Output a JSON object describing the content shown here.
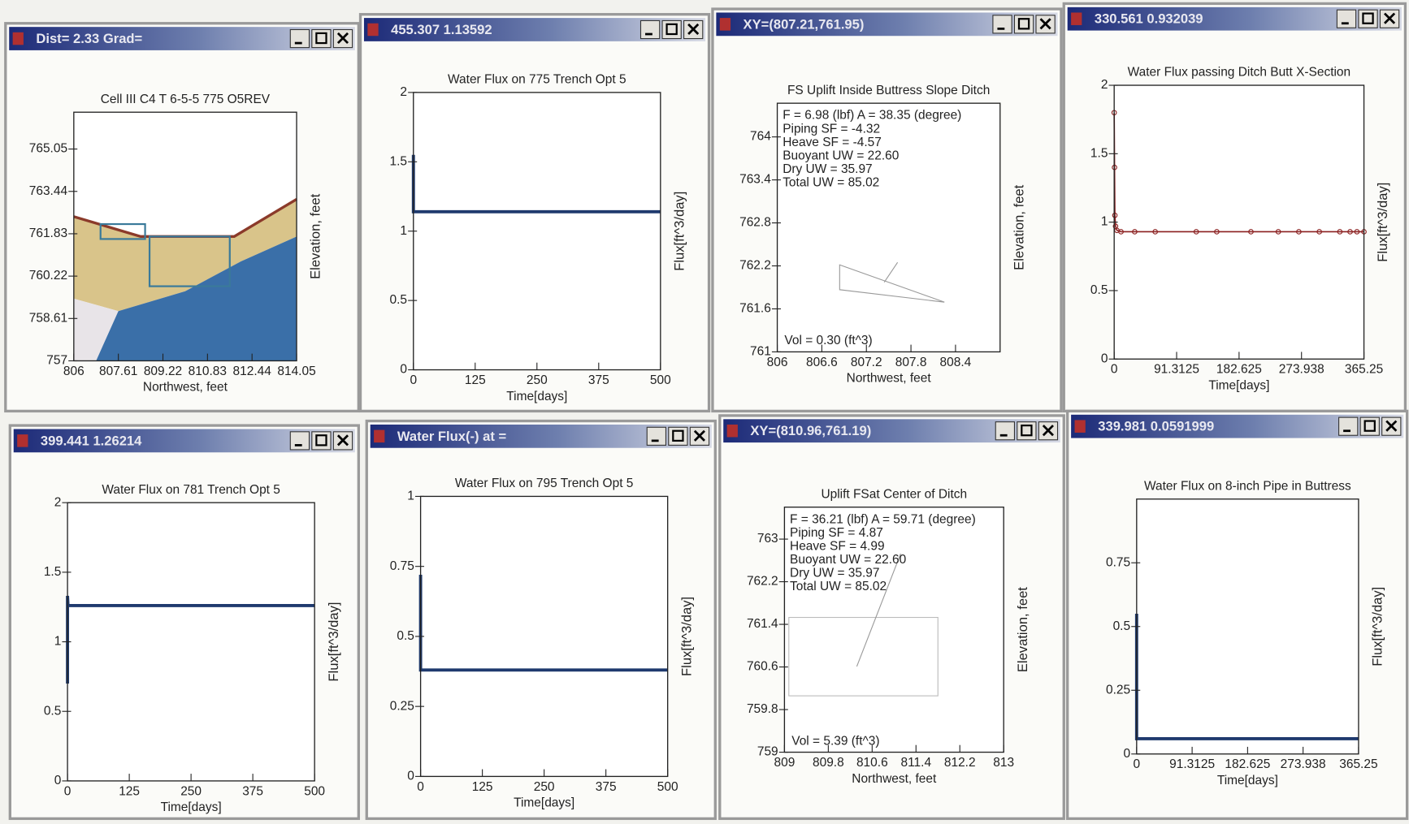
{
  "chart_data": [
    {
      "type": "section",
      "window_title": "Dist= 2.33 Grad=",
      "title": "Cell III C4 T 6-5-5 775 O5REV",
      "x_label": "Northwest, feet",
      "y_label": "Elevation, feet",
      "xlim": [
        806,
        814.05
      ],
      "xticks": [
        806,
        807.61,
        809.22,
        810.83,
        812.44,
        814.05
      ],
      "ylim": [
        757,
        766.45
      ],
      "yticks": [
        757,
        758.61,
        760.22,
        761.83,
        763.44,
        765.05
      ]
    },
    {
      "type": "line",
      "window_title": "455.307 1.13592",
      "title": "Water Flux on 775 Trench Opt 5",
      "x_label": "Time[days]",
      "y_label": "Flux[ft^3/day]",
      "xlim": [
        0,
        500
      ],
      "xticks": [
        0,
        125,
        250,
        375,
        500
      ],
      "ylim": [
        0,
        2
      ],
      "yticks": [
        0,
        0.5,
        1,
        1.5,
        2
      ],
      "x": [
        0,
        0,
        1,
        500
      ],
      "values": [
        1.55,
        1.14,
        1.14,
        1.14
      ],
      "color": "#1f3a6e"
    },
    {
      "type": "fs",
      "window_title": "XY=(807.21,761.95)",
      "title": "FS Uplift Inside Buttress Slope Ditch",
      "x_label": "Northwest, feet",
      "y_label": "Elevation, feet",
      "xlim": [
        806,
        809
      ],
      "xticks": [
        806,
        806.6,
        807.2,
        807.8,
        808.4
      ],
      "ylim": [
        761,
        764.47
      ],
      "yticks": [
        761,
        761.6,
        762.2,
        762.8,
        763.4,
        764
      ],
      "annotations": [
        "F = 6.98 (lbf) A = 38.35 (degree)",
        "Piping SF = -4.32",
        "Heave SF = -4.57",
        "Buoyant UW = 22.60",
        "Dry UW = 35.97",
        "Total UW = 85.02"
      ],
      "volume_note": "Vol = 0.30 (ft^3)"
    },
    {
      "type": "line",
      "window_title": "330.561 0.932039",
      "title": "Water Flux passing Ditch Butt X-Section",
      "x_label": "Time[days]",
      "y_label": "Flux[ft^3/day]",
      "xlim": [
        0,
        365.25
      ],
      "xticks": [
        0,
        91.3125,
        182.625,
        273.938,
        365.25
      ],
      "ylim": [
        0,
        2
      ],
      "yticks": [
        0,
        0.5,
        1,
        1.5,
        2
      ],
      "x": [
        0,
        0.5,
        1,
        2,
        4,
        10,
        30,
        60,
        120,
        150,
        200,
        240,
        270,
        300,
        330,
        345,
        355,
        365.25
      ],
      "values": [
        1.8,
        1.4,
        1.05,
        0.97,
        0.94,
        0.93,
        0.93,
        0.93,
        0.93,
        0.93,
        0.93,
        0.93,
        0.93,
        0.93,
        0.93,
        0.93,
        0.93,
        0.93
      ],
      "color": "#8b2020",
      "markers": true
    },
    {
      "type": "line",
      "window_title": "399.441 1.26214",
      "title": "Water Flux on 781 Trench Opt 5",
      "x_label": "Time[days]",
      "y_label": "Flux[ft^3/day]",
      "xlim": [
        0,
        500
      ],
      "xticks": [
        0,
        125,
        250,
        375,
        500
      ],
      "ylim": [
        0,
        2
      ],
      "yticks": [
        0,
        0.5,
        1,
        1.5,
        2
      ],
      "x": [
        0,
        0,
        1,
        500
      ],
      "values": [
        0.7,
        1.33,
        1.26,
        1.26
      ],
      "color": "#1f3a6e"
    },
    {
      "type": "line",
      "window_title": "Water Flux(-) at =",
      "title": "Water Flux on 795 Trench Opt 5",
      "x_label": "Time[days]",
      "y_label": "Flux[ft^3/day]",
      "xlim": [
        0,
        500
      ],
      "xticks": [
        0,
        125,
        250,
        375,
        500
      ],
      "ylim": [
        0,
        1
      ],
      "yticks": [
        0,
        0.25,
        0.5,
        0.75,
        1
      ],
      "x": [
        0,
        0,
        500
      ],
      "values": [
        0.72,
        0.38,
        0.38
      ],
      "color": "#1f3a6e"
    },
    {
      "type": "fs",
      "window_title": "XY=(810.96,761.19)",
      "title": "Uplift FSat Center of Ditch",
      "x_label": "Northwest, feet",
      "y_label": "Elevation, feet",
      "xlim": [
        809,
        813
      ],
      "xticks": [
        809,
        809.8,
        810.6,
        811.4,
        812.2,
        813
      ],
      "ylim": [
        759,
        763.6
      ],
      "yticks": [
        759,
        759.8,
        760.6,
        761.4,
        762.2,
        763
      ],
      "annotations": [
        "F = 36.21 (lbf) A = 59.71 (degree)",
        "Piping SF = 4.87",
        "Heave SF = 4.99",
        "Buoyant UW = 22.60",
        "Dry UW = 35.97",
        "Total UW = 85.02"
      ],
      "volume_note": "Vol = 5.39 (ft^3)"
    },
    {
      "type": "line",
      "window_title": "339.981 0.0591999",
      "title": "Water Flux on 8-inch Pipe in Buttress",
      "x_label": "Time[days]",
      "y_label": "Flux[ft^3/day]",
      "xlim": [
        0,
        365.25
      ],
      "xticks": [
        0,
        91.3125,
        182.625,
        273.938,
        365.25
      ],
      "ylim": [
        0,
        1
      ],
      "yticks": [
        0,
        0.25,
        0.5,
        0.75
      ],
      "x": [
        0,
        0,
        365.25
      ],
      "values": [
        0.55,
        0.06,
        0.06
      ],
      "color": "#1f3a6e"
    }
  ]
}
